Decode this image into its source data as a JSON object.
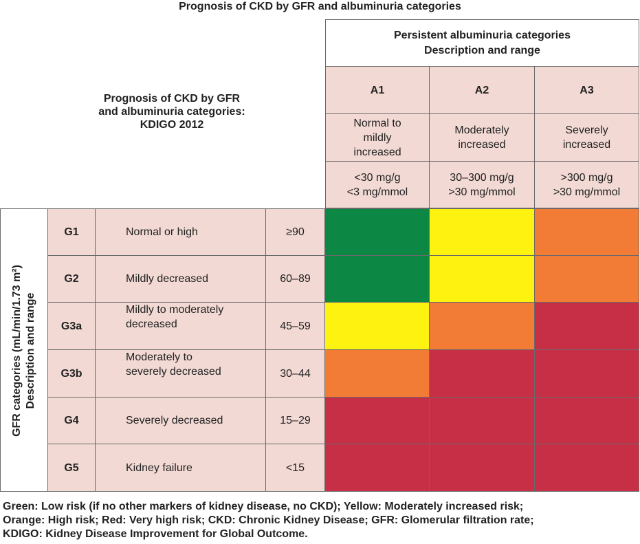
{
  "title": "Prognosis of CKD by GFR and albuminuria categories",
  "kdigo_title": [
    "Prognosis of CKD by GFR",
    "and albuminuria categories:",
    "KDIGO 2012"
  ],
  "albuminuria_header": [
    "Persistent albuminuria categories",
    "Description and range"
  ],
  "gfr_axis_label": [
    "GFR categories (mL/min/1.73 m²)",
    "Description and range"
  ],
  "albuminuria_categories": [
    {
      "code": "A1",
      "description": [
        "Normal to",
        "mildly",
        "increased"
      ],
      "range": [
        "<30 mg/g",
        "<3 mg/mmol"
      ]
    },
    {
      "code": "A2",
      "description": [
        "Moderately",
        "increased"
      ],
      "range": [
        "30–300 mg/g",
        ">30 mg/mmol"
      ]
    },
    {
      "code": "A3",
      "description": [
        "Severely",
        "increased"
      ],
      "range": [
        ">300 mg/g",
        ">30 mg/mmol"
      ]
    }
  ],
  "gfr_categories": [
    {
      "code": "G1",
      "description": [
        "Normal or high"
      ],
      "range": "≥90",
      "risk": [
        "green",
        "yellow",
        "orange"
      ]
    },
    {
      "code": "G2",
      "description": [
        "Mildly decreased"
      ],
      "range": "60–89",
      "risk": [
        "green",
        "yellow",
        "orange"
      ]
    },
    {
      "code": "G3a",
      "description": [
        "Mildly to moderately",
        "decreased"
      ],
      "range": "45–59",
      "risk": [
        "yellow",
        "orange",
        "red"
      ]
    },
    {
      "code": "G3b",
      "description": [
        "Moderately to",
        "severely decreased"
      ],
      "range": "30–44",
      "risk": [
        "orange",
        "red",
        "red"
      ]
    },
    {
      "code": "G4",
      "description": [
        "Severely decreased"
      ],
      "range": "15–29",
      "risk": [
        "red",
        "red",
        "red"
      ]
    },
    {
      "code": "G5",
      "description": [
        "Kidney failure"
      ],
      "range": "<15",
      "risk": [
        "red",
        "red",
        "red"
      ]
    }
  ],
  "risk_colors": {
    "green": "#0d8744",
    "yellow": "#fef210",
    "orange": "#f27c36",
    "red": "#c62f45"
  },
  "footnote": [
    "Green: Low risk (if no other markers of kidney disease, no CKD); Yellow: Moderately increased risk;",
    "Orange: High risk; Red: Very high risk; CKD: Chronic Kidney Disease; GFR: Glomerular filtration rate;",
    "KDIGO: Kidney Disease Improvement for Global Outcome."
  ]
}
